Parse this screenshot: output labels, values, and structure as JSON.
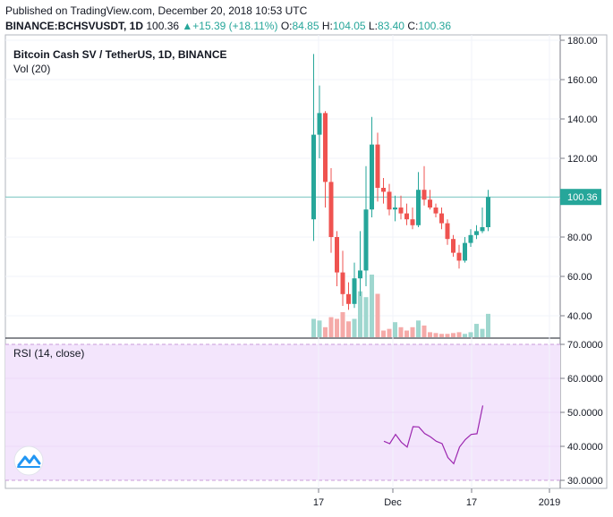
{
  "header": {
    "published": "Published on TradingView.com, December 20, 2018 10:53 UTC",
    "symbol": "BINANCE:BCHSVUSDT, 1D",
    "last": "100.36",
    "change": "+15.39 (+18.11%)",
    "o_label": "O:",
    "o_value": "84.85",
    "h_label": "H:",
    "h_value": "104.05",
    "l_label": "L:",
    "l_value": "83.40",
    "c_label": "C:",
    "c_value": "100.36"
  },
  "chart_data": [
    {
      "type": "candlestick",
      "title": "Bitcoin Cash SV / TetherUS, 1D, BINANCE",
      "volume_label": "Vol (20)",
      "ylim": [
        34,
        182
      ],
      "yticks": [
        "180.00",
        "160.00",
        "140.00",
        "120.00",
        "100.00",
        "80.00",
        "60.00",
        "40.00"
      ],
      "ytick_values": [
        180,
        160,
        140,
        120,
        100,
        80,
        60,
        40
      ],
      "last_price": 100.36,
      "last_price_label": "100.36",
      "xticks": [
        "17",
        "Dec",
        "17",
        "2019"
      ],
      "candles": [
        {
          "o": 89,
          "h": 173,
          "l": 78,
          "c": 132
        },
        {
          "o": 132,
          "h": 157,
          "l": 120,
          "c": 143
        },
        {
          "o": 143,
          "h": 144,
          "l": 95,
          "c": 108
        },
        {
          "o": 108,
          "h": 115,
          "l": 72,
          "c": 80
        },
        {
          "o": 80,
          "h": 83,
          "l": 55,
          "c": 62
        },
        {
          "o": 62,
          "h": 73,
          "l": 45,
          "c": 51
        },
        {
          "o": 51,
          "h": 57,
          "l": 43,
          "c": 46
        },
        {
          "o": 46,
          "h": 67,
          "l": 44,
          "c": 59
        },
        {
          "o": 59,
          "h": 83,
          "l": 50,
          "c": 63
        },
        {
          "o": 63,
          "h": 116,
          "l": 55,
          "c": 94
        },
        {
          "o": 94,
          "h": 141,
          "l": 90,
          "c": 127
        },
        {
          "o": 127,
          "h": 133,
          "l": 98,
          "c": 105
        },
        {
          "o": 105,
          "h": 110,
          "l": 97,
          "c": 103
        },
        {
          "o": 103,
          "h": 107,
          "l": 91,
          "c": 94
        },
        {
          "o": 94,
          "h": 101,
          "l": 88,
          "c": 95
        },
        {
          "o": 95,
          "h": 101,
          "l": 89,
          "c": 92
        },
        {
          "o": 92,
          "h": 97,
          "l": 86,
          "c": 89
        },
        {
          "o": 89,
          "h": 95,
          "l": 84,
          "c": 86
        },
        {
          "o": 86,
          "h": 113,
          "l": 85,
          "c": 104
        },
        {
          "o": 104,
          "h": 116,
          "l": 96,
          "c": 99
        },
        {
          "o": 99,
          "h": 104,
          "l": 94,
          "c": 95
        },
        {
          "o": 95,
          "h": 97,
          "l": 90,
          "c": 92
        },
        {
          "o": 92,
          "h": 95,
          "l": 84,
          "c": 87
        },
        {
          "o": 87,
          "h": 89,
          "l": 76,
          "c": 79
        },
        {
          "o": 79,
          "h": 81,
          "l": 70,
          "c": 72
        },
        {
          "o": 72,
          "h": 76,
          "l": 64,
          "c": 68
        },
        {
          "o": 68,
          "h": 80,
          "l": 67,
          "c": 77
        },
        {
          "o": 77,
          "h": 84,
          "l": 75,
          "c": 81
        },
        {
          "o": 81,
          "h": 86,
          "l": 79,
          "c": 83
        },
        {
          "o": 83,
          "h": 95,
          "l": 82,
          "c": 85
        },
        {
          "o": 85,
          "h": 104,
          "l": 83,
          "c": 100.36
        }
      ],
      "volume": [
        22,
        20,
        12,
        24,
        22,
        30,
        19,
        22,
        55,
        48,
        75,
        52,
        8,
        10,
        18,
        12,
        8,
        12,
        20,
        14,
        6,
        5,
        4,
        4,
        5,
        6,
        4,
        6,
        16,
        10,
        28
      ]
    },
    {
      "type": "line",
      "title": "RSI (14, close)",
      "ylim": [
        30,
        70
      ],
      "yticks": [
        "70.0000",
        "60.0000",
        "50.0000",
        "40.0000",
        "30.0000"
      ],
      "ytick_values": [
        70,
        60,
        50,
        40,
        30
      ],
      "values": [
        41.5,
        40.8,
        43.5,
        41.2,
        39.8,
        45.8,
        45.7,
        43.8,
        42.8,
        41.5,
        40.8,
        36.7,
        34.9,
        39.8,
        42,
        43.5,
        43.7,
        52
      ]
    }
  ]
}
